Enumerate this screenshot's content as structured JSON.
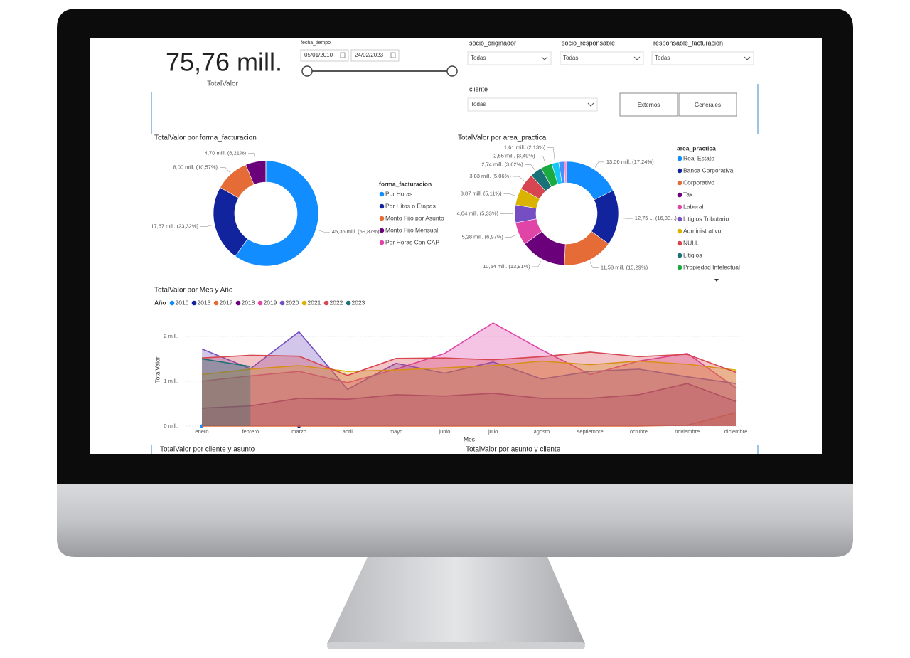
{
  "kpi": {
    "value": "75,76 mill.",
    "label": "TotalValor"
  },
  "date_filter": {
    "label": "fecha_tiempo",
    "start": "05/01/2010",
    "end": "24/02/2023"
  },
  "slicers": [
    {
      "label": "socio_originador",
      "value": "Todas"
    },
    {
      "label": "socio_responsable",
      "value": "Todas"
    },
    {
      "label": "responsable_facturacion",
      "value": "Todas"
    },
    {
      "label": "cliente",
      "value": "Todas"
    }
  ],
  "buttons": [
    "Externos",
    "Generales"
  ],
  "chart_data": [
    {
      "type": "donut",
      "title": "TotalValor por forma_facturacion",
      "legend_title": "forma_facturacion",
      "categories": [
        "Por Horas",
        "Por Hitos o Etapas",
        "Monto Fijo por Asunto",
        "Monto Fijo Mensual",
        "Por Horas Con CAP"
      ],
      "values": [
        45.36,
        17.67,
        8.0,
        4.7,
        0.03
      ],
      "value_labels": [
        "45,36 mill. (59,87%)",
        "17,67 mill. (23,32%)",
        "8,00 mill. (10,57%)",
        "4,70 mill. (6,21%)",
        null
      ],
      "colors": [
        "#118DFF",
        "#12239E",
        "#E66C37",
        "#6B007B",
        "#E044A7"
      ]
    },
    {
      "type": "donut",
      "title": "TotalValor por area_practica",
      "legend_title": "area_practica",
      "categories": [
        "Real Estate",
        "Banca Corporativa",
        "Corporativo",
        "Tax",
        "Laboral",
        "Litigios Tributario",
        "Administrativo",
        "NULL",
        "Litigios",
        "Propiedad Intelectual",
        null,
        null,
        null
      ],
      "values": [
        13.06,
        12.75,
        11.58,
        10.54,
        5.28,
        4.04,
        3.87,
        3.83,
        2.74,
        2.65,
        1.61,
        1.2,
        0.6
      ],
      "value_labels": [
        "13,06 mill. (17,24%)",
        "12,75 ... (16,83...)",
        "11,58 mill. (15,29%)",
        "10,54 mill. (13,91%)",
        "5,28 mill. (6,97%)",
        "4,04 mill. (5,33%)",
        "3,87 mill. (5,11%)",
        "3,83 mill. (5,06%)",
        "2,74 mill. (3,62%)",
        "2,65 mill. (3,49%)",
        "1,61 mill. (2,13%)",
        null,
        null
      ],
      "colors": [
        "#118DFF",
        "#12239E",
        "#E66C37",
        "#6B007B",
        "#E044A7",
        "#744EC2",
        "#D9B300",
        "#D64550",
        "#197278",
        "#1AAB40",
        "#15C6F4",
        "#4092FF",
        "#FF8FCB"
      ]
    },
    {
      "type": "area",
      "title": "TotalValor por Mes y Año",
      "legend_title": "Año",
      "x_label": "Mes",
      "y_label": "TotalValor",
      "categories": [
        "enero",
        "febrero",
        "marzo",
        "abril",
        "mayo",
        "junio",
        "julio",
        "agosto",
        "septiembre",
        "octubre",
        "noviembre",
        "diciembre"
      ],
      "series": [
        {
          "name": "2010",
          "color": "#118DFF",
          "values": [
            0,
            null,
            null,
            null,
            null,
            null,
            null,
            null,
            null,
            null,
            null,
            null
          ]
        },
        {
          "name": "2013",
          "color": "#12239E",
          "values": [
            null,
            null,
            0,
            null,
            null,
            null,
            null,
            null,
            null,
            null,
            null,
            null
          ]
        },
        {
          "name": "2017",
          "color": "#E66C37",
          "values": [
            0,
            0,
            0,
            0,
            0,
            0,
            0,
            0,
            0,
            0,
            0.02,
            0.3
          ]
        },
        {
          "name": "2018",
          "color": "#6B007B",
          "values": [
            0.4,
            0.45,
            0.62,
            0.6,
            0.7,
            0.67,
            0.73,
            0.62,
            0.62,
            0.7,
            0.95,
            0.55
          ]
        },
        {
          "name": "2019",
          "color": "#E044A7",
          "values": [
            1.0,
            1.12,
            1.22,
            0.97,
            1.27,
            1.62,
            2.3,
            1.7,
            1.15,
            1.45,
            1.62,
            0.85
          ]
        },
        {
          "name": "2020",
          "color": "#744EC2",
          "values": [
            1.72,
            1.28,
            2.1,
            0.82,
            1.4,
            1.18,
            1.43,
            1.05,
            1.22,
            1.27,
            1.1,
            0.95
          ]
        },
        {
          "name": "2021",
          "color": "#D9B300",
          "values": [
            1.15,
            1.27,
            1.35,
            1.22,
            1.25,
            1.3,
            1.35,
            1.45,
            1.37,
            1.45,
            1.38,
            1.25
          ]
        },
        {
          "name": "2022",
          "color": "#D64550",
          "values": [
            1.52,
            1.58,
            1.56,
            1.13,
            1.51,
            1.52,
            1.48,
            1.55,
            1.65,
            1.55,
            1.6,
            1.2
          ]
        },
        {
          "name": "2023",
          "color": "#197278",
          "values": [
            1.5,
            1.33,
            null,
            null,
            null,
            null,
            null,
            null,
            null,
            null,
            null,
            null
          ]
        }
      ],
      "ylim": [
        0,
        2.3
      ],
      "yticks": [
        {
          "value": 0,
          "label": "0 mill."
        },
        {
          "value": 1,
          "label": "1 mill."
        },
        {
          "value": 2,
          "label": "2 mill."
        }
      ],
      "grid": true
    }
  ],
  "bottom_titles": [
    "TotalValor por cliente y asunto",
    "TotalValor por asunto y cliente"
  ]
}
